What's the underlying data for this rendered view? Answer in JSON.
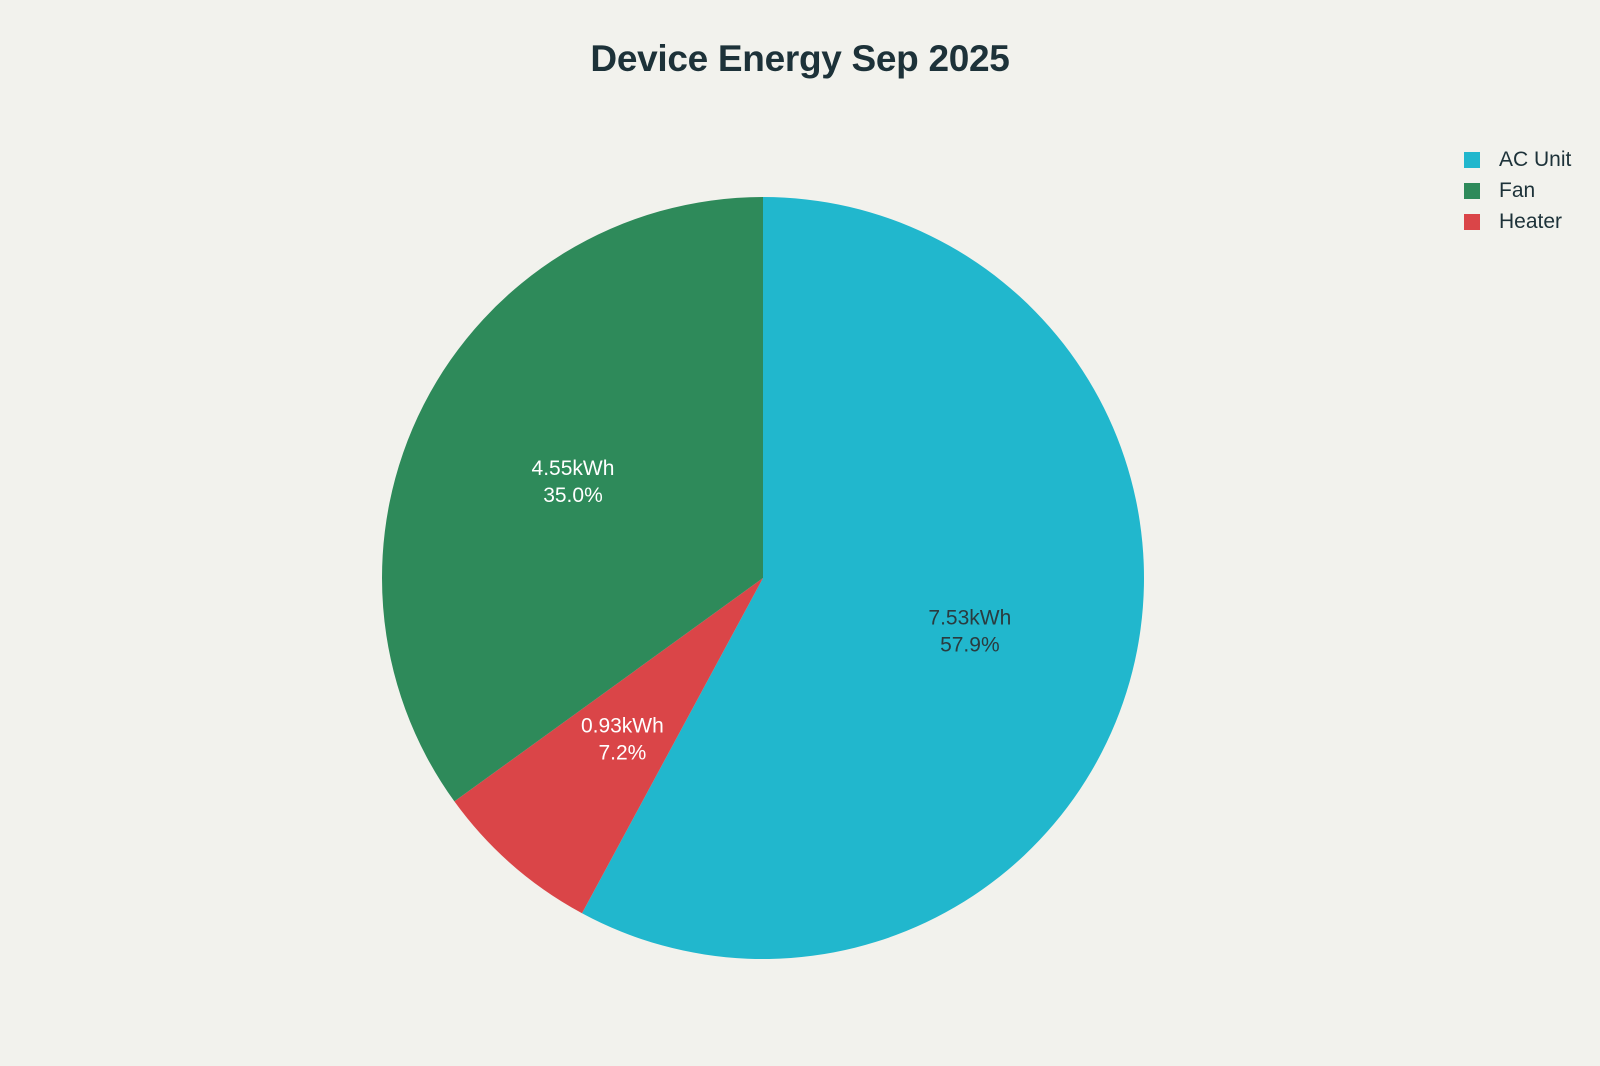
{
  "chart_data": {
    "type": "pie",
    "title": "Device Energy Sep 2025",
    "unit": "kWh",
    "slices": [
      {
        "label": "AC Unit",
        "value": 7.53,
        "value_text": "7.53kWh",
        "percent_text": "57.9%",
        "color": "#21b7cd",
        "label_color": "#2a3b3f"
      },
      {
        "label": "Heater",
        "value": 0.93,
        "value_text": "0.93kWh",
        "percent_text": "7.2%",
        "color": "#da4548",
        "label_color": "#ffffff"
      },
      {
        "label": "Fan",
        "value": 4.55,
        "value_text": "4.55kWh",
        "percent_text": "35.0%",
        "color": "#2e8a5a",
        "label_color": "#ffffff"
      }
    ],
    "legend": [
      {
        "label": "AC Unit",
        "color": "#21b7cd"
      },
      {
        "label": "Fan",
        "color": "#2e8a5a"
      },
      {
        "label": "Heater",
        "color": "#da4548"
      }
    ],
    "legend_position": "top-right",
    "direction": "clockwise",
    "start_angle": "12 o'clock"
  }
}
